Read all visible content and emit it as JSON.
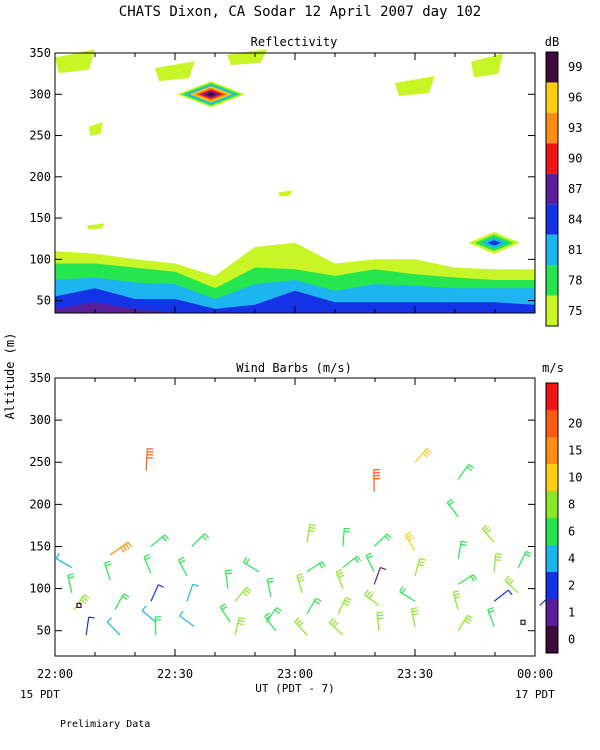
{
  "title": "CHATS Dixon, CA  Sodar  12 April 2007  day 102",
  "ylabel": "Altitude (m)",
  "xlabel": "UT  (PDT - 7)",
  "footer_note": "Prelimiary Data",
  "x_ticks": [
    "22:00",
    "22:30",
    "23:00",
    "23:30",
    "00:00"
  ],
  "x_left_date": "15 PDT",
  "x_right_date": "17 PDT",
  "y_ticks": [
    "50",
    "100",
    "150",
    "200",
    "250",
    "300",
    "350"
  ],
  "chart_data": [
    {
      "type": "heatmap",
      "title": "Reflectivity",
      "colorbar_label": "dB",
      "colorbar_ticks": [
        "75",
        "78",
        "81",
        "84",
        "87",
        "90",
        "93",
        "96",
        "99"
      ],
      "colorbar_colors": [
        "#c8f526",
        "#26e64f",
        "#1eb4f0",
        "#1432e6",
        "#5a1e9b",
        "#f01414",
        "#ff8c14",
        "#ffcc14",
        "#3c0a3c"
      ],
      "x_range": [
        "22:00",
        "00:00"
      ],
      "ylim": [
        20,
        350
      ],
      "x_hours": [
        0,
        0.167,
        0.333,
        0.5,
        0.667,
        0.833,
        1.0,
        1.167,
        1.333,
        1.5,
        1.667,
        1.833,
        2.0
      ],
      "layers": [
        {
          "level": 75,
          "top": [
            110,
            107,
            100,
            95,
            80,
            115,
            120,
            95,
            100,
            100,
            90,
            88,
            88
          ]
        },
        {
          "level": 78,
          "top": [
            95,
            95,
            90,
            85,
            65,
            90,
            88,
            80,
            88,
            82,
            78,
            75,
            75
          ]
        },
        {
          "level": 81,
          "top": [
            75,
            78,
            72,
            70,
            52,
            70,
            75,
            62,
            70,
            68,
            65,
            65,
            65
          ]
        },
        {
          "level": 84,
          "top": [
            55,
            65,
            52,
            52,
            40,
            45,
            62,
            48,
            48,
            48,
            48,
            48,
            45
          ]
        },
        {
          "level": 87,
          "top": [
            40,
            48,
            40,
            20,
            20,
            20,
            20,
            20,
            20,
            20,
            20,
            20,
            20
          ]
        }
      ],
      "patches": [
        {
          "x": 0.083,
          "y": 340,
          "level": 75
        },
        {
          "x": 0.5,
          "y": 328,
          "level": 75
        },
        {
          "x": 0.8,
          "y": 345,
          "level": 75
        },
        {
          "x": 1.5,
          "y": 310,
          "level": 75
        },
        {
          "x": 1.8,
          "y": 335,
          "level": 75
        },
        {
          "x": 0.17,
          "y": 258,
          "level": 75
        },
        {
          "x": 0.17,
          "y": 140,
          "level": 75
        },
        {
          "x": 0.96,
          "y": 180,
          "level": 75
        },
        {
          "x": 0.65,
          "y": 300,
          "level": 99
        },
        {
          "x": 1.83,
          "y": 120,
          "level": 84
        }
      ]
    },
    {
      "type": "scatter",
      "title": "Wind Barbs (m/s)",
      "colorbar_label": "m/s",
      "colorbar_ticks": [
        "0",
        "1",
        "2",
        "4",
        "6",
        "8",
        "10",
        "15",
        "20"
      ],
      "colorbar_colors": [
        "#3c0a3c",
        "#5a1e9b",
        "#1432e6",
        "#1eb4f0",
        "#26e64f",
        "#8ce628",
        "#ffcc14",
        "#ff8c14",
        "#ff5a14",
        "#f01414"
      ],
      "x_range": [
        "22:00",
        "00:00"
      ],
      "ylim": [
        20,
        350
      ],
      "barbs": [
        {
          "t": 0.07,
          "z": 125,
          "speed": 4
        },
        {
          "t": 0.07,
          "z": 95,
          "speed": 6
        },
        {
          "t": 0.08,
          "z": 75,
          "speed": 8
        },
        {
          "t": 0.1,
          "z": 80,
          "speed": 0
        },
        {
          "t": 0.13,
          "z": 45,
          "speed": 2
        },
        {
          "t": 0.23,
          "z": 140,
          "speed": 15
        },
        {
          "t": 0.23,
          "z": 110,
          "speed": 6
        },
        {
          "t": 0.25,
          "z": 75,
          "speed": 6
        },
        {
          "t": 0.27,
          "z": 45,
          "speed": 4
        },
        {
          "t": 0.38,
          "z": 240,
          "speed": 20
        },
        {
          "t": 0.4,
          "z": 150,
          "speed": 6
        },
        {
          "t": 0.4,
          "z": 118,
          "speed": 6
        },
        {
          "t": 0.4,
          "z": 85,
          "speed": 2
        },
        {
          "t": 0.42,
          "z": 60,
          "speed": 4
        },
        {
          "t": 0.42,
          "z": 45,
          "speed": 6
        },
        {
          "t": 0.57,
          "z": 150,
          "speed": 6
        },
        {
          "t": 0.55,
          "z": 115,
          "speed": 6
        },
        {
          "t": 0.55,
          "z": 85,
          "speed": 4
        },
        {
          "t": 0.58,
          "z": 55,
          "speed": 4
        },
        {
          "t": 0.72,
          "z": 100,
          "speed": 6
        },
        {
          "t": 0.75,
          "z": 85,
          "speed": 8
        },
        {
          "t": 0.73,
          "z": 60,
          "speed": 6
        },
        {
          "t": 0.75,
          "z": 45,
          "speed": 8
        },
        {
          "t": 0.85,
          "z": 120,
          "speed": 6
        },
        {
          "t": 0.9,
          "z": 90,
          "speed": 6
        },
        {
          "t": 0.88,
          "z": 60,
          "speed": 6
        },
        {
          "t": 0.92,
          "z": 50,
          "speed": 6
        },
        {
          "t": 1.05,
          "z": 155,
          "speed": 8
        },
        {
          "t": 1.05,
          "z": 120,
          "speed": 6
        },
        {
          "t": 1.03,
          "z": 95,
          "speed": 8
        },
        {
          "t": 1.05,
          "z": 70,
          "speed": 6
        },
        {
          "t": 1.05,
          "z": 45,
          "speed": 8
        },
        {
          "t": 1.2,
          "z": 150,
          "speed": 6
        },
        {
          "t": 1.2,
          "z": 125,
          "speed": 6
        },
        {
          "t": 1.2,
          "z": 100,
          "speed": 8
        },
        {
          "t": 1.18,
          "z": 70,
          "speed": 8
        },
        {
          "t": 1.2,
          "z": 45,
          "speed": 8
        },
        {
          "t": 1.33,
          "z": 215,
          "speed": 20
        },
        {
          "t": 1.33,
          "z": 150,
          "speed": 6
        },
        {
          "t": 1.33,
          "z": 120,
          "speed": 6
        },
        {
          "t": 1.33,
          "z": 105,
          "speed": 1
        },
        {
          "t": 1.35,
          "z": 80,
          "speed": 8
        },
        {
          "t": 1.35,
          "z": 50,
          "speed": 8
        },
        {
          "t": 1.5,
          "z": 250,
          "speed": 10
        },
        {
          "t": 1.5,
          "z": 145,
          "speed": 10
        },
        {
          "t": 1.5,
          "z": 115,
          "speed": 8
        },
        {
          "t": 1.5,
          "z": 85,
          "speed": 6
        },
        {
          "t": 1.5,
          "z": 55,
          "speed": 8
        },
        {
          "t": 1.68,
          "z": 230,
          "speed": 6
        },
        {
          "t": 1.68,
          "z": 185,
          "speed": 6
        },
        {
          "t": 1.68,
          "z": 135,
          "speed": 6
        },
        {
          "t": 1.68,
          "z": 105,
          "speed": 6
        },
        {
          "t": 1.68,
          "z": 75,
          "speed": 8
        },
        {
          "t": 1.68,
          "z": 50,
          "speed": 8
        },
        {
          "t": 1.83,
          "z": 155,
          "speed": 8
        },
        {
          "t": 1.83,
          "z": 120,
          "speed": 8
        },
        {
          "t": 1.83,
          "z": 85,
          "speed": 2
        },
        {
          "t": 1.83,
          "z": 55,
          "speed": 6
        },
        {
          "t": 1.93,
          "z": 125,
          "speed": 6
        },
        {
          "t": 1.93,
          "z": 95,
          "speed": 8
        },
        {
          "t": 1.95,
          "z": 60,
          "speed": 0
        },
        {
          "t": 2.02,
          "z": 80,
          "speed": 2
        }
      ]
    }
  ]
}
